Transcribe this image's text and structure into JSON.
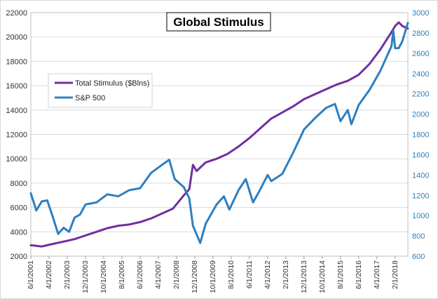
{
  "chart_data": {
    "type": "line",
    "title": "Global Stimulus",
    "xlabel": "",
    "ylabel": "",
    "y_left": {
      "min": 2000,
      "max": 22000,
      "step": 2000
    },
    "y_right": {
      "min": 600,
      "max": 3000,
      "step": 200
    },
    "x_range": [
      "2001-06",
      "2018-09"
    ],
    "x_tick_labels": [
      "6/1/2001",
      "4/1/2002",
      "2/1/2003",
      "12/1/2003",
      "10/1/2004",
      "8/1/2005",
      "6/1/2006",
      "4/1/2007",
      "2/1/2008",
      "12/1/2008",
      "10/1/2009",
      "8/1/2010",
      "6/1/2011",
      "4/1/2012",
      "2/1/2013",
      "12/1/2013",
      "10/1/2014",
      "8/1/2015",
      "6/1/2016",
      "4/1/2017",
      "2/1/2018"
    ],
    "y_left_tick_labels": [
      "2000",
      "4000",
      "6000",
      "8000",
      "10000",
      "12000",
      "14000",
      "16000",
      "18000",
      "20000",
      "22000"
    ],
    "y_right_tick_labels": [
      "600",
      "800",
      "1000",
      "1200",
      "1400",
      "1600",
      "1800",
      "2000",
      "2200",
      "2400",
      "2600",
      "2800",
      "3000"
    ],
    "grid": "horizontal",
    "legend_position": "left",
    "series": [
      {
        "name": "Total Stimulus ($Blns)",
        "axis": "left",
        "color": "#7030a0",
        "x": [
          "2001-06",
          "2001-12",
          "2002-06",
          "2002-12",
          "2003-06",
          "2003-12",
          "2004-06",
          "2004-12",
          "2005-06",
          "2005-12",
          "2006-06",
          "2006-12",
          "2007-06",
          "2007-12",
          "2008-06",
          "2008-09",
          "2008-11",
          "2009-01",
          "2009-06",
          "2009-12",
          "2010-06",
          "2010-12",
          "2011-06",
          "2011-12",
          "2012-06",
          "2012-12",
          "2013-06",
          "2013-12",
          "2014-06",
          "2014-12",
          "2015-06",
          "2015-12",
          "2016-06",
          "2016-12",
          "2017-06",
          "2017-12",
          "2018-02",
          "2018-04",
          "2018-06",
          "2018-09"
        ],
        "values": [
          2900,
          2800,
          3000,
          3200,
          3400,
          3700,
          4000,
          4300,
          4500,
          4600,
          4800,
          5100,
          5500,
          5900,
          7000,
          7500,
          9500,
          9000,
          9700,
          10000,
          10400,
          11000,
          11700,
          12500,
          13300,
          13800,
          14300,
          14900,
          15300,
          15700,
          16100,
          16400,
          16900,
          17800,
          19000,
          20400,
          20900,
          21200,
          20900,
          20700
        ]
      },
      {
        "name": "S&P 500",
        "axis": "right",
        "color": "#2e7fc0",
        "x": [
          "2001-06",
          "2001-09",
          "2001-12",
          "2002-03",
          "2002-06",
          "2002-09",
          "2002-12",
          "2003-03",
          "2003-06",
          "2003-09",
          "2003-12",
          "2004-06",
          "2004-12",
          "2005-06",
          "2005-12",
          "2006-06",
          "2006-12",
          "2007-06",
          "2007-10",
          "2008-01",
          "2008-06",
          "2008-09",
          "2008-11",
          "2009-03",
          "2009-06",
          "2009-12",
          "2010-04",
          "2010-07",
          "2010-12",
          "2011-04",
          "2011-08",
          "2011-12",
          "2012-04",
          "2012-06",
          "2012-12",
          "2013-06",
          "2013-12",
          "2014-06",
          "2014-12",
          "2015-05",
          "2015-08",
          "2015-12",
          "2016-02",
          "2016-06",
          "2016-12",
          "2017-06",
          "2017-12",
          "2018-01",
          "2018-02",
          "2018-04",
          "2018-06",
          "2018-09"
        ],
        "values": [
          1220,
          1050,
          1140,
          1150,
          990,
          820,
          880,
          840,
          980,
          1010,
          1110,
          1130,
          1210,
          1190,
          1250,
          1270,
          1420,
          1500,
          1550,
          1360,
          1280,
          1170,
          900,
          730,
          920,
          1110,
          1190,
          1060,
          1250,
          1360,
          1130,
          1260,
          1400,
          1340,
          1410,
          1620,
          1850,
          1960,
          2060,
          2100,
          1930,
          2040,
          1900,
          2090,
          2240,
          2430,
          2670,
          2820,
          2650,
          2650,
          2720,
          2900
        ]
      }
    ]
  }
}
